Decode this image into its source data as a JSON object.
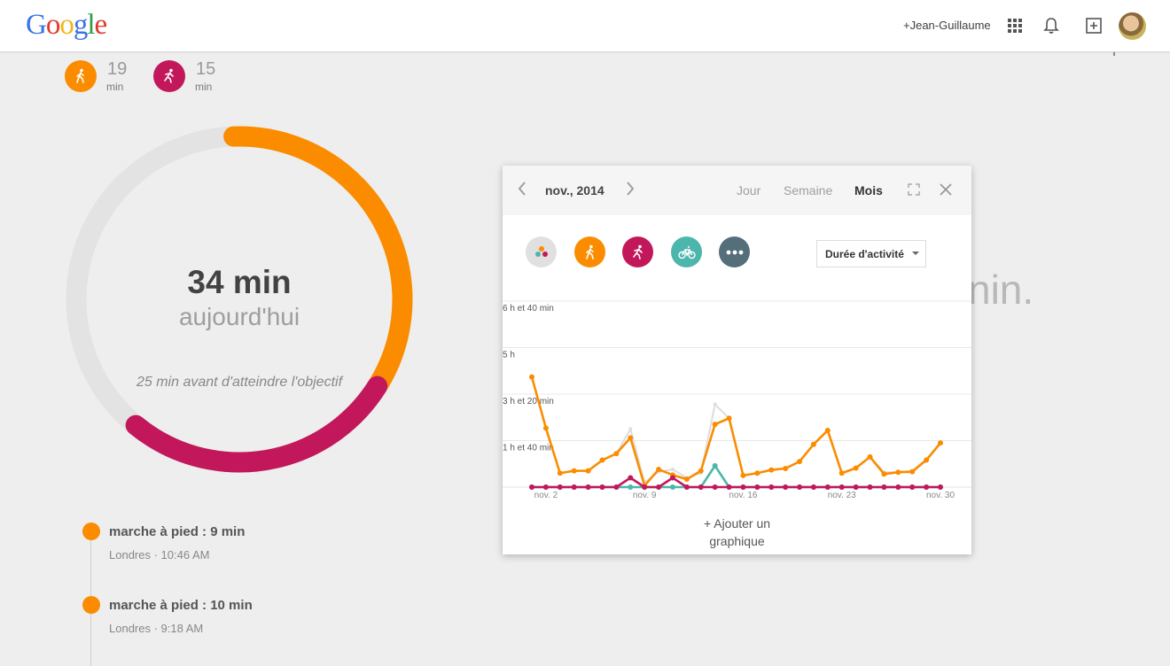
{
  "header": {
    "user_link": "+Jean-Guillaume",
    "icons": [
      "apps-grid-icon",
      "bell-icon",
      "add-box-icon"
    ]
  },
  "summary": {
    "walking": {
      "value": "19",
      "unit": "min",
      "color": "#fb8c00"
    },
    "running": {
      "value": "15",
      "unit": "min",
      "color": "#c2185b"
    }
  },
  "ring": {
    "value": "34 min",
    "label": "aujourd'hui",
    "goal_text": "25 min avant d'atteindre l'objectif",
    "walking_fraction": 0.345,
    "running_fraction": 0.27
  },
  "background_text": "nin.",
  "timeline": [
    {
      "title": "marche à pied : 9 min",
      "meta": "Londres · 10:46 AM"
    },
    {
      "title": "marche à pied : 10 min",
      "meta": "Londres · 9:18 AM"
    }
  ],
  "popup": {
    "period": "nov., 2014",
    "scopes": [
      "Jour",
      "Semaine",
      "Mois"
    ],
    "active_scope": "Mois",
    "filters": [
      "all-activities-icon",
      "walking-icon",
      "running-icon",
      "cycling-icon",
      "more-icon"
    ],
    "metric": "Durée d'activité",
    "add_chart": "+ Ajouter un graphique"
  },
  "chart_data": {
    "type": "line",
    "x": [
      1,
      2,
      3,
      4,
      5,
      6,
      7,
      8,
      9,
      10,
      11,
      12,
      13,
      14,
      15,
      16,
      17,
      18,
      19,
      20,
      21,
      22,
      23,
      24,
      25,
      26,
      27,
      28,
      29,
      30
    ],
    "x_tick_labels": [
      {
        "x": 2,
        "label": "nov. 2"
      },
      {
        "x": 9,
        "label": "nov. 9"
      },
      {
        "x": 16,
        "label": "nov. 16"
      },
      {
        "x": 23,
        "label": "nov. 23"
      },
      {
        "x": 30,
        "label": "nov. 30"
      }
    ],
    "y_unit": "minutes",
    "y_tick_labels": [
      {
        "y": 100,
        "label": "1 h et 40 min"
      },
      {
        "y": 200,
        "label": "3 h et 20 min"
      },
      {
        "y": 300,
        "label": "5 h"
      },
      {
        "y": 400,
        "label": "6 h et 40 min"
      }
    ],
    "ylim": [
      0,
      400
    ],
    "grid": true,
    "series": [
      {
        "color": "#dddddd",
        "values": [
          237,
          127,
          30,
          35,
          35,
          58,
          72,
          125,
          10,
          33,
          38,
          20,
          30,
          178,
          148,
          25,
          30,
          37,
          40,
          55,
          92,
          122,
          30,
          41,
          65,
          32,
          32,
          35,
          60,
          95
        ]
      },
      {
        "color": "#4db6ac",
        "values": [
          0,
          0,
          0,
          0,
          0,
          0,
          0,
          0,
          0,
          0,
          0,
          0,
          0,
          46,
          0,
          0,
          0,
          0,
          0,
          0,
          0,
          0,
          0,
          0,
          0,
          0,
          0,
          0,
          0,
          0
        ]
      },
      {
        "color": "#fb8c00",
        "values": [
          237,
          127,
          30,
          35,
          35,
          58,
          72,
          106,
          3,
          38,
          26,
          17,
          35,
          135,
          148,
          25,
          30,
          37,
          40,
          55,
          92,
          122,
          30,
          41,
          65,
          28,
          32,
          33,
          58,
          95
        ]
      },
      {
        "color": "#c2185b",
        "values": [
          0,
          0,
          0,
          0,
          0,
          0,
          0,
          20,
          0,
          0,
          20,
          0,
          0,
          0,
          0,
          0,
          0,
          0,
          0,
          0,
          0,
          0,
          0,
          0,
          0,
          0,
          0,
          0,
          0,
          0
        ]
      }
    ]
  }
}
